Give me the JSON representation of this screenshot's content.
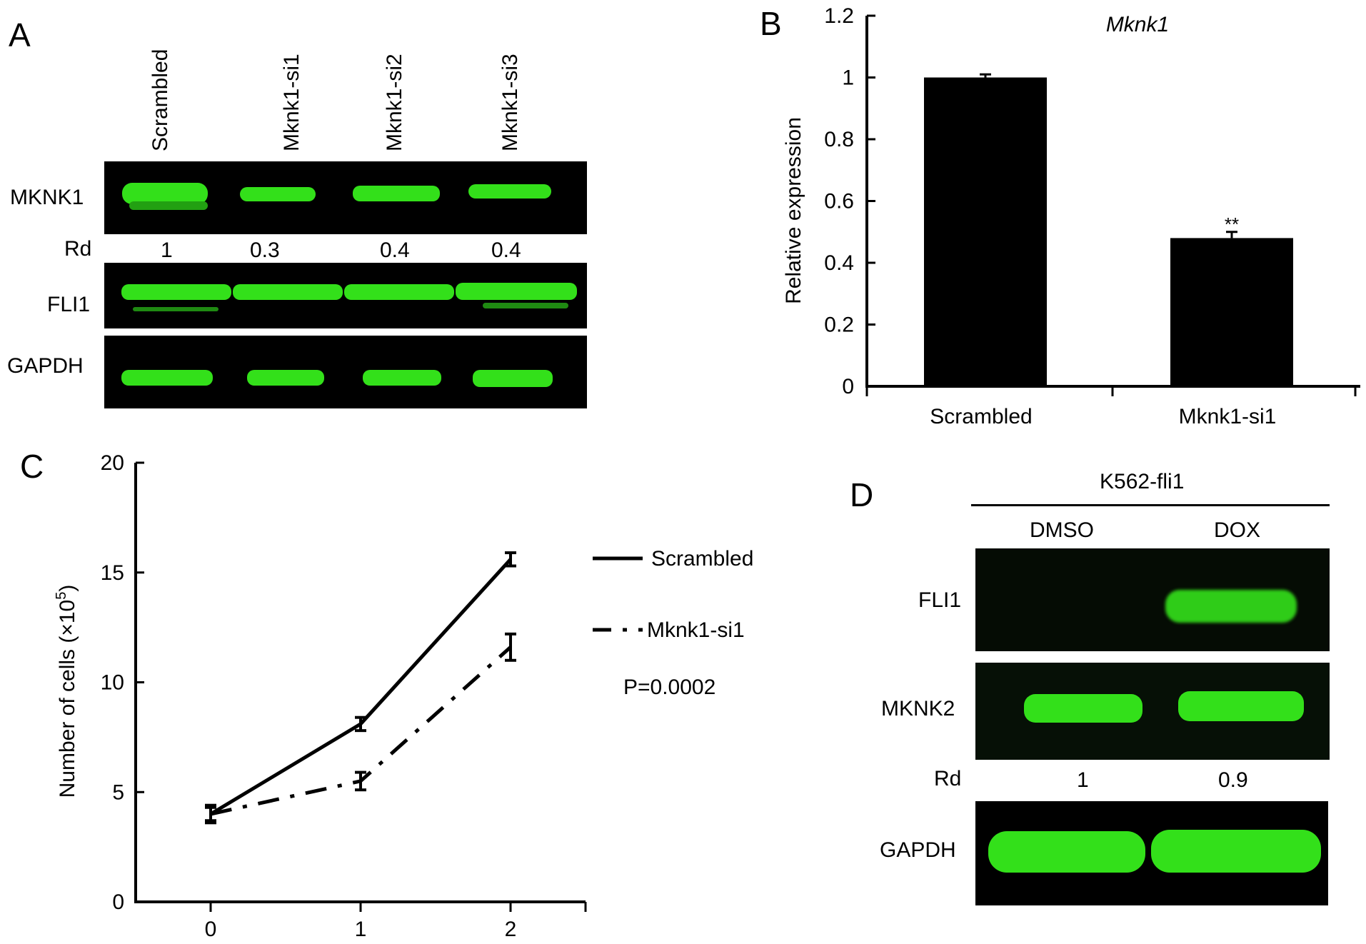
{
  "panel_a": {
    "label": "A",
    "lanes": [
      "Scrambled",
      "Mknk1-si1",
      "Mknk1-si2",
      "Mknk1-si3"
    ],
    "blots": [
      "MKNK1",
      "FLI1",
      "GAPDH"
    ],
    "rd_label": "Rd",
    "rd_values": [
      "1",
      "0.3",
      "0.4",
      "0.4"
    ]
  },
  "panel_b": {
    "label": "B",
    "chart_data": {
      "type": "bar",
      "title": "Mknk1",
      "ylabel": "Relative expression",
      "xlabel": "",
      "categories": [
        "Scrambled",
        "Mknk1-si1"
      ],
      "values": [
        1.0,
        0.48
      ],
      "errors": [
        0.01,
        0.02
      ],
      "annotations": [
        "",
        "**"
      ],
      "ylim": [
        0,
        1.2
      ],
      "yticks": [
        "0",
        "0.2",
        "0.4",
        "0.6",
        "0.8",
        "1",
        "1.2"
      ],
      "bar_color": "#000000"
    }
  },
  "panel_c": {
    "label": "C",
    "chart_data": {
      "type": "line",
      "xlabel": "",
      "ylabel": "Number of cells (×10",
      "ylabel_sup": "5",
      "ylabel_end": ")",
      "x": [
        0,
        1,
        2
      ],
      "xticks": [
        "0",
        "1",
        "2"
      ],
      "ylim": [
        0,
        20
      ],
      "yticks": [
        "0",
        "5",
        "10",
        "15",
        "20"
      ],
      "series": [
        {
          "name": "Scrambled",
          "values": [
            4.0,
            8.1,
            15.6
          ],
          "errors": [
            0.4,
            0.3,
            0.3
          ],
          "style": "solid"
        },
        {
          "name": "Mknk1-si1",
          "values": [
            4.0,
            5.5,
            11.6
          ],
          "errors": [
            0.3,
            0.4,
            0.6
          ],
          "style": "dashdot"
        }
      ],
      "annotation": "P=0.0002",
      "legend": "right"
    }
  },
  "panel_d": {
    "label": "D",
    "group_label": "K562-fli1",
    "lanes": [
      "DMSO",
      "DOX"
    ],
    "blots": [
      "FLI1",
      "MKNK2",
      "GAPDH"
    ],
    "rd_label": "Rd",
    "rd_values": [
      "1",
      "0.9"
    ]
  },
  "colors": {
    "band": "#33e01a",
    "band_dim": "#1f8a12",
    "blot_bg": "#000000"
  }
}
